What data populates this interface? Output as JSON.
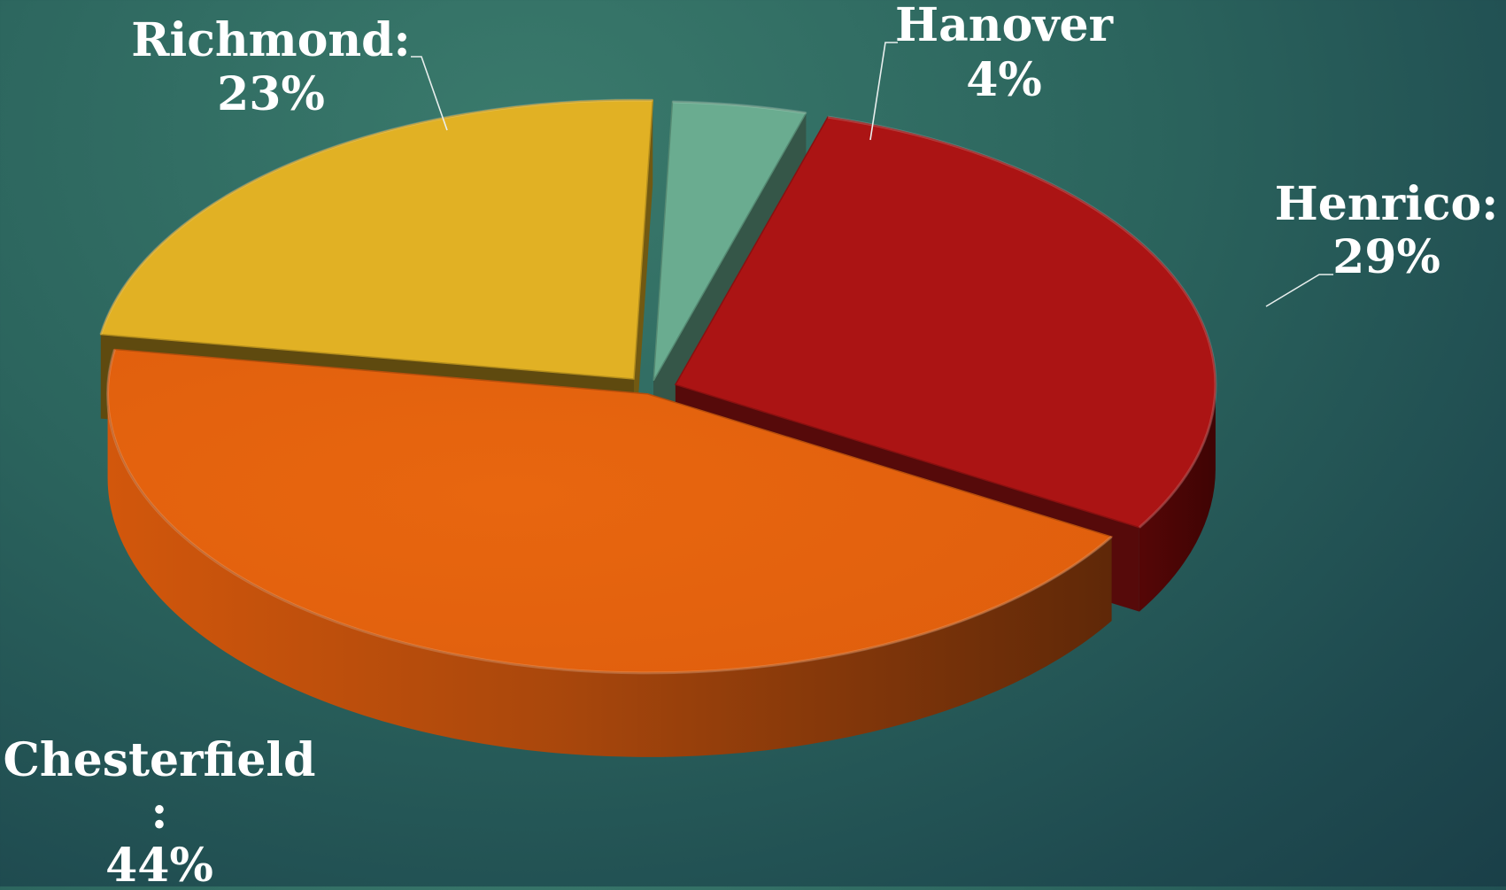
{
  "chart_data": {
    "type": "pie",
    "style": "3d-exploded",
    "slices": [
      {
        "category": "Hanover",
        "label_text": "Hanover",
        "value_text": "4%",
        "value": 4,
        "color": "#6aac90"
      },
      {
        "category": "Henrico",
        "label_text": "Henrico:",
        "value_text": "29%",
        "value": 29,
        "color": "#ab1414"
      },
      {
        "category": "Chesterfield",
        "label_text": "Chesterfield",
        "label_text_2": ":",
        "value_text": "44%",
        "value": 44,
        "color": "#e3620f"
      },
      {
        "category": "Richmond",
        "label_text": "Richmond:",
        "value_text": "23%",
        "value": 23,
        "color": "#e1b124"
      }
    ]
  }
}
